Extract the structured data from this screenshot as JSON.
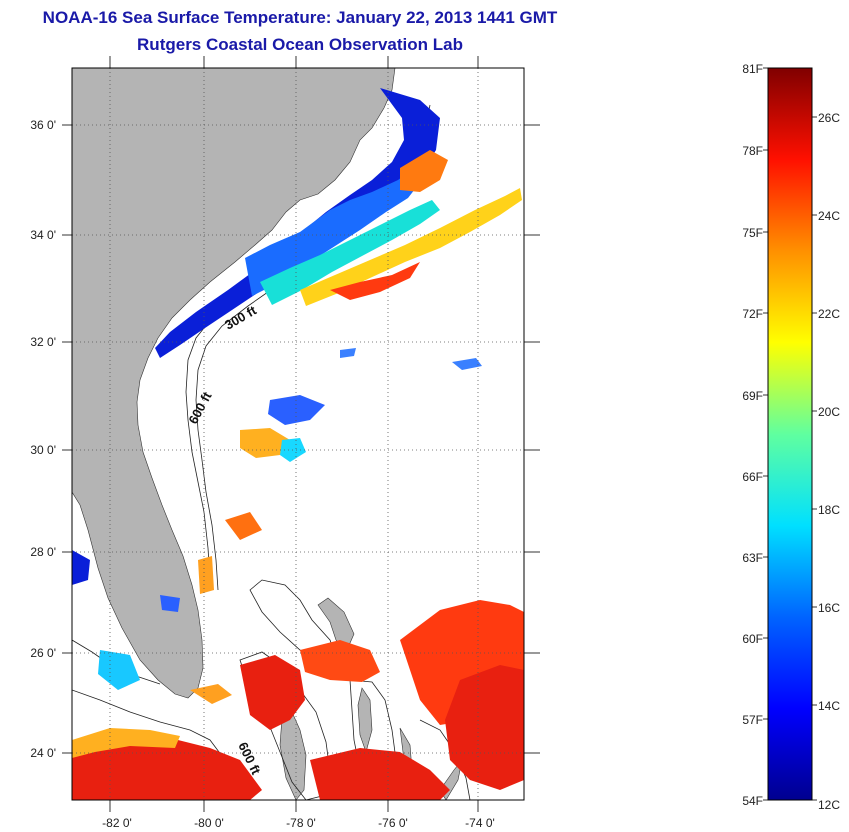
{
  "header": {
    "title": "NOAA-16 Sea Surface Temperature:  January 22, 2013 1441 GMT",
    "subtitle": "Rutgers Coastal Ocean Observation Lab"
  },
  "map": {
    "lat_labels": [
      "36 0'",
      "34 0'",
      "32 0'",
      "30 0'",
      "28 0'",
      "26 0'",
      "24 0'"
    ],
    "lon_labels": [
      "-82 0'",
      "-80 0'",
      "-78 0'",
      "-76 0'",
      "-74 0'"
    ],
    "contour_labels": [
      "300 ft",
      "600 ft",
      "600 ft"
    ],
    "land_color": "#b4b4b4",
    "ocean_color": "#ffffff"
  },
  "colorbar": {
    "fahrenheit_labels": [
      "81F",
      "78F",
      "75F",
      "72F",
      "69F",
      "66F",
      "63F",
      "60F",
      "57F",
      "54F"
    ],
    "celsius_labels": [
      "26C",
      "24C",
      "22C",
      "20C",
      "18C",
      "16C",
      "14C",
      "12C"
    ],
    "colors": [
      "#00008f",
      "#0000ff",
      "#0080ff",
      "#00ffff",
      "#80ff80",
      "#ffff00",
      "#ff8000",
      "#ff0000",
      "#800000"
    ]
  }
}
